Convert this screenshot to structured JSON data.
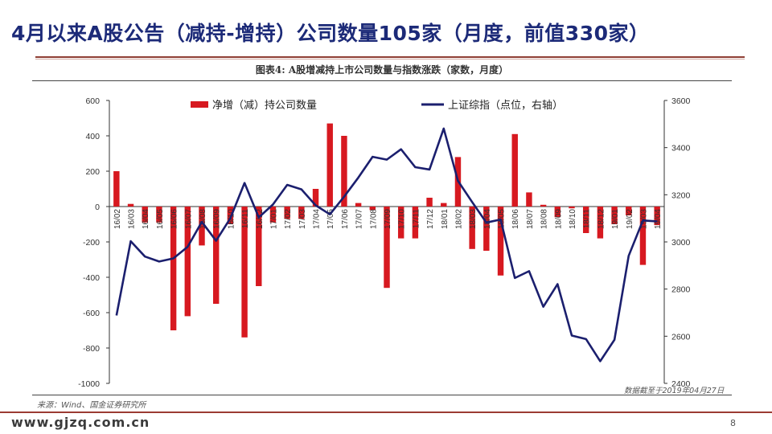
{
  "page": {
    "title": "4月以来A股公告（减持-增持）公司数量105家（月度，前值330家）",
    "chart_caption": "图表4: A股增减持上市公司数量与指数涨跌（家数，月度）",
    "source": "来源：Wind、国金证券研究所",
    "cutoff_note": "数据截至于2019年04月27日",
    "watermark": "www.gjzq.com.cn",
    "page_number": "8"
  },
  "colors": {
    "title": "#1c2a78",
    "bar": "#d71920",
    "line": "#1b1f6e",
    "accent_rule": "#8f3e34"
  },
  "chart_data": {
    "type": "bar+line",
    "categories": [
      "16/02",
      "16/03",
      "16/04",
      "16/05",
      "16/06",
      "16/07",
      "16/08",
      "16/09",
      "16/10",
      "16/11",
      "16/12",
      "17/01",
      "17/02",
      "17/03",
      "17/04",
      "17/05",
      "17/06",
      "17/07",
      "17/08",
      "17/09",
      "17/10",
      "17/11",
      "17/12",
      "18/01",
      "18/02",
      "18/03",
      "18/04",
      "18/05",
      "18/06",
      "18/07",
      "18/08",
      "18/09",
      "18/10",
      "18/11",
      "18/12",
      "19/01",
      "19/02",
      "19/03",
      "19/04"
    ],
    "category_labels": [
      "16/02",
      "16/03",
      "16/04",
      "16/05",
      "16/06",
      "16/07",
      "16/08",
      "16/09",
      "16/10",
      "16/11",
      "16/12",
      "17/01",
      "17/02",
      "17/03",
      "17/04",
      "17/05",
      "17/06",
      "17/07",
      "17/08",
      "17/09",
      "17/10",
      "17/11",
      "17/12",
      "18/01",
      "18/02",
      "18/03",
      "18/04",
      "18/05",
      "18/06",
      "18/07",
      "18/08",
      "18/09",
      "18/10",
      "18/11",
      "18/12",
      "19/01",
      "19/02",
      "19/03",
      "19/04"
    ],
    "series": [
      {
        "name": "净增（减）持公司数量",
        "type": "bar",
        "axis": "left",
        "values": [
          200,
          15,
          -90,
          -90,
          -700,
          -620,
          -220,
          -550,
          -100,
          -740,
          -450,
          -90,
          -70,
          -70,
          100,
          470,
          400,
          20,
          -20,
          -460,
          -180,
          -180,
          50,
          20,
          280,
          -240,
          -250,
          -390,
          410,
          80,
          10,
          -60,
          -10,
          -150,
          -180,
          -100,
          -50,
          -330,
          -105
        ]
      },
      {
        "name": "上证综指（点位，右轴）",
        "type": "line",
        "axis": "right",
        "values": [
          2688,
          3003,
          2938,
          2917,
          2930,
          2979,
          3085,
          3005,
          3100,
          3250,
          3104,
          3159,
          3242,
          3223,
          3155,
          3117,
          3192,
          3273,
          3361,
          3349,
          3393,
          3317,
          3307,
          3481,
          3259,
          3169,
          3082,
          3095,
          2847,
          2876,
          2725,
          2821,
          2603,
          2588,
          2494,
          2585,
          2941,
          3091,
          3087
        ]
      }
    ],
    "y_left": {
      "min": -1000,
      "max": 600,
      "ticks": [
        -1000,
        -800,
        -600,
        -400,
        -200,
        0,
        200,
        400,
        600
      ]
    },
    "y_right": {
      "min": 2400,
      "max": 3600,
      "ticks": [
        2400,
        2600,
        2800,
        3000,
        3200,
        3400,
        3600
      ]
    },
    "legend_position": "top",
    "grid": false
  }
}
